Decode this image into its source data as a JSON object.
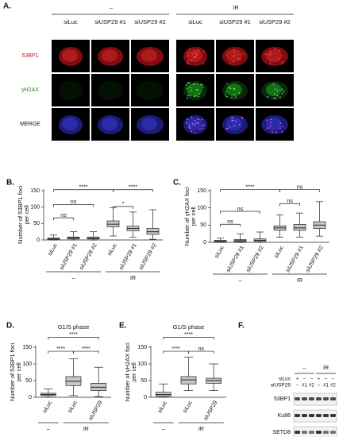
{
  "panel_a": {
    "label": "A.",
    "groups": [
      "–",
      "IR"
    ],
    "columns": [
      "siLuc",
      "siUSP29 #1",
      "siUSP29 #2",
      "siLuc",
      "siUSP29 #1",
      "siUSP29 #2"
    ],
    "rows": [
      "53BP1",
      "γH2AX",
      "MERGE"
    ]
  },
  "chart_data": [
    {
      "type": "box",
      "panel": "B.",
      "y_label": "Number of 53BP1 foci per cell",
      "categories": [
        "siLuc",
        "siUSP29 #1",
        "siUSP29 #2",
        "siLuc",
        "siUSP29 #1",
        "siUSP29 #2"
      ],
      "groups": [
        "–",
        "IR"
      ],
      "boxes": [
        {
          "min": 0,
          "q1": 1,
          "median": 3,
          "q3": 6,
          "max": 15
        },
        {
          "min": 0,
          "q1": 3,
          "median": 6,
          "q3": 9,
          "max": 25
        },
        {
          "min": 0,
          "q1": 3,
          "median": 5,
          "q3": 9,
          "max": 25
        },
        {
          "min": 12,
          "q1": 40,
          "median": 48,
          "q3": 58,
          "max": 98
        },
        {
          "min": 8,
          "q1": 28,
          "median": 35,
          "q3": 42,
          "max": 85
        },
        {
          "min": 2,
          "q1": 17,
          "median": 25,
          "q3": 35,
          "max": 92
        }
      ],
      "significance": [
        "****",
        "ns",
        "ns",
        "*",
        "****"
      ],
      "ylim": [
        0,
        150
      ],
      "yticks": [
        0,
        50,
        100,
        150
      ],
      "color": "#c8c8c8"
    },
    {
      "type": "box",
      "panel": "C.",
      "y_label": "Number of γH2AX foci per cell",
      "categories": [
        "siLuc",
        "siUSP29 #1",
        "siUSP29 #2",
        "siLuc",
        "siUSP29 #1",
        "siUSP29 #2"
      ],
      "groups": [
        "–",
        "IR"
      ],
      "boxes": [
        {
          "min": 0,
          "q1": 1,
          "median": 3,
          "q3": 6,
          "max": 12
        },
        {
          "min": 0,
          "q1": 2,
          "median": 5,
          "q3": 8,
          "max": 25
        },
        {
          "min": 0,
          "q1": 3,
          "median": 6,
          "q3": 10,
          "max": 30
        },
        {
          "min": 15,
          "q1": 35,
          "median": 42,
          "q3": 48,
          "max": 80
        },
        {
          "min": 15,
          "q1": 35,
          "median": 42,
          "q3": 52,
          "max": 85
        },
        {
          "min": 18,
          "q1": 40,
          "median": 50,
          "q3": 60,
          "max": 118
        }
      ],
      "significance": [
        "****",
        "ns",
        "ns",
        "ns",
        "ns"
      ],
      "ylim": [
        0,
        150
      ],
      "yticks": [
        0,
        50,
        100,
        150
      ],
      "color": "#c8c8c8"
    },
    {
      "type": "box",
      "panel": "D.",
      "title": "G1/S phase",
      "y_label": "Number of 53BP1 foci per cell",
      "categories": [
        "siLuc",
        "siLuc",
        "siUSP29"
      ],
      "groups": [
        "–",
        "IR"
      ],
      "boxes": [
        {
          "min": 0,
          "q1": 5,
          "median": 8,
          "q3": 12,
          "max": 25
        },
        {
          "min": 5,
          "q1": 35,
          "median": 48,
          "q3": 62,
          "max": 115
        },
        {
          "min": 2,
          "q1": 20,
          "median": 30,
          "q3": 42,
          "max": 90
        }
      ],
      "significance": [
        "****",
        "****",
        "****"
      ],
      "ylim": [
        0,
        150
      ],
      "yticks": [
        0,
        50,
        100,
        150
      ],
      "color": "#c8c8c8"
    },
    {
      "type": "box",
      "panel": "E.",
      "title": "G1/S phase",
      "y_label": "Number of γH2AX foci per cell",
      "categories": [
        "siLuc",
        "siLuc",
        "siUSP29"
      ],
      "groups": [
        "–",
        "IR"
      ],
      "boxes": [
        {
          "min": 0,
          "q1": 3,
          "median": 8,
          "q3": 15,
          "max": 40
        },
        {
          "min": 20,
          "q1": 40,
          "median": 52,
          "q3": 62,
          "max": 120
        },
        {
          "min": 20,
          "q1": 42,
          "median": 50,
          "q3": 57,
          "max": 100
        }
      ],
      "significance": [
        "****",
        "****",
        "ns"
      ],
      "ylim": [
        0,
        150
      ],
      "yticks": [
        0,
        50,
        100,
        150
      ],
      "color": "#c8c8c8"
    }
  ],
  "panel_f": {
    "label": "F.",
    "groups": [
      "–",
      "IR"
    ],
    "rows": [
      {
        "name": "siLuc",
        "lanes": [
          "+",
          "–",
          "–",
          "+",
          "–",
          "–"
        ]
      },
      {
        "name": "siUSP29",
        "lanes": [
          "–",
          "#1",
          "#2",
          "–",
          "#1",
          "#2"
        ]
      }
    ],
    "bands": [
      "53BP1",
      "Ku86",
      "SETD8"
    ]
  }
}
